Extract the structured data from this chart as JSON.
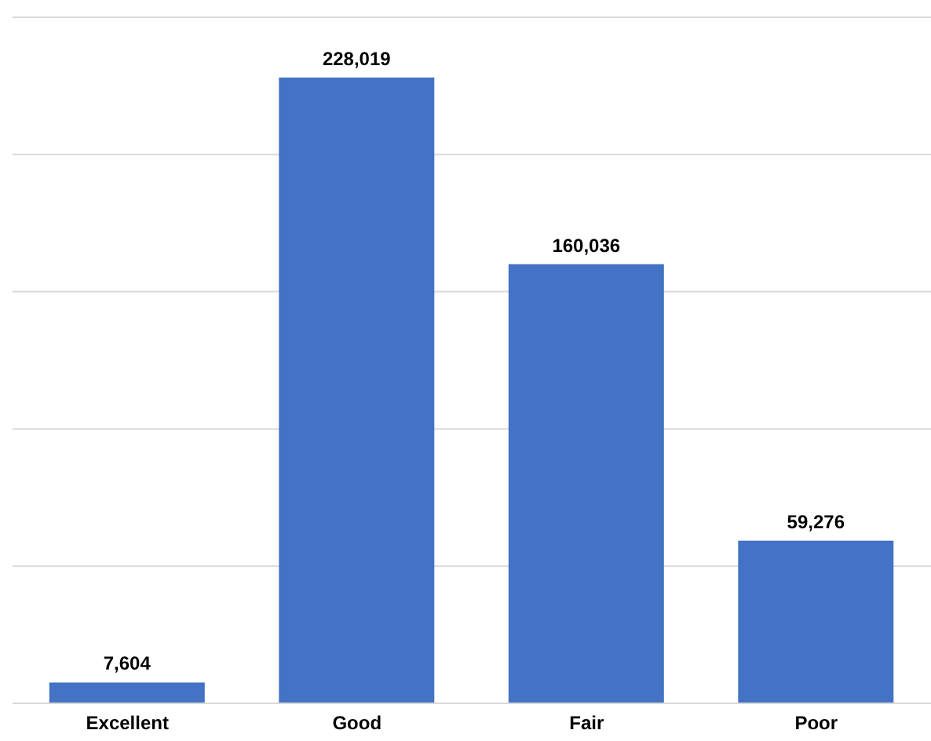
{
  "chart_data": {
    "type": "bar",
    "categories": [
      "Excellent",
      "Good",
      "Fair",
      "Poor"
    ],
    "values": [
      7604,
      228019,
      160036,
      59276
    ],
    "value_labels": [
      "7,604",
      "228,019",
      "160,036",
      "59,276"
    ],
    "color": "#4472c4",
    "grid": "y",
    "tick_labels": "x"
  }
}
